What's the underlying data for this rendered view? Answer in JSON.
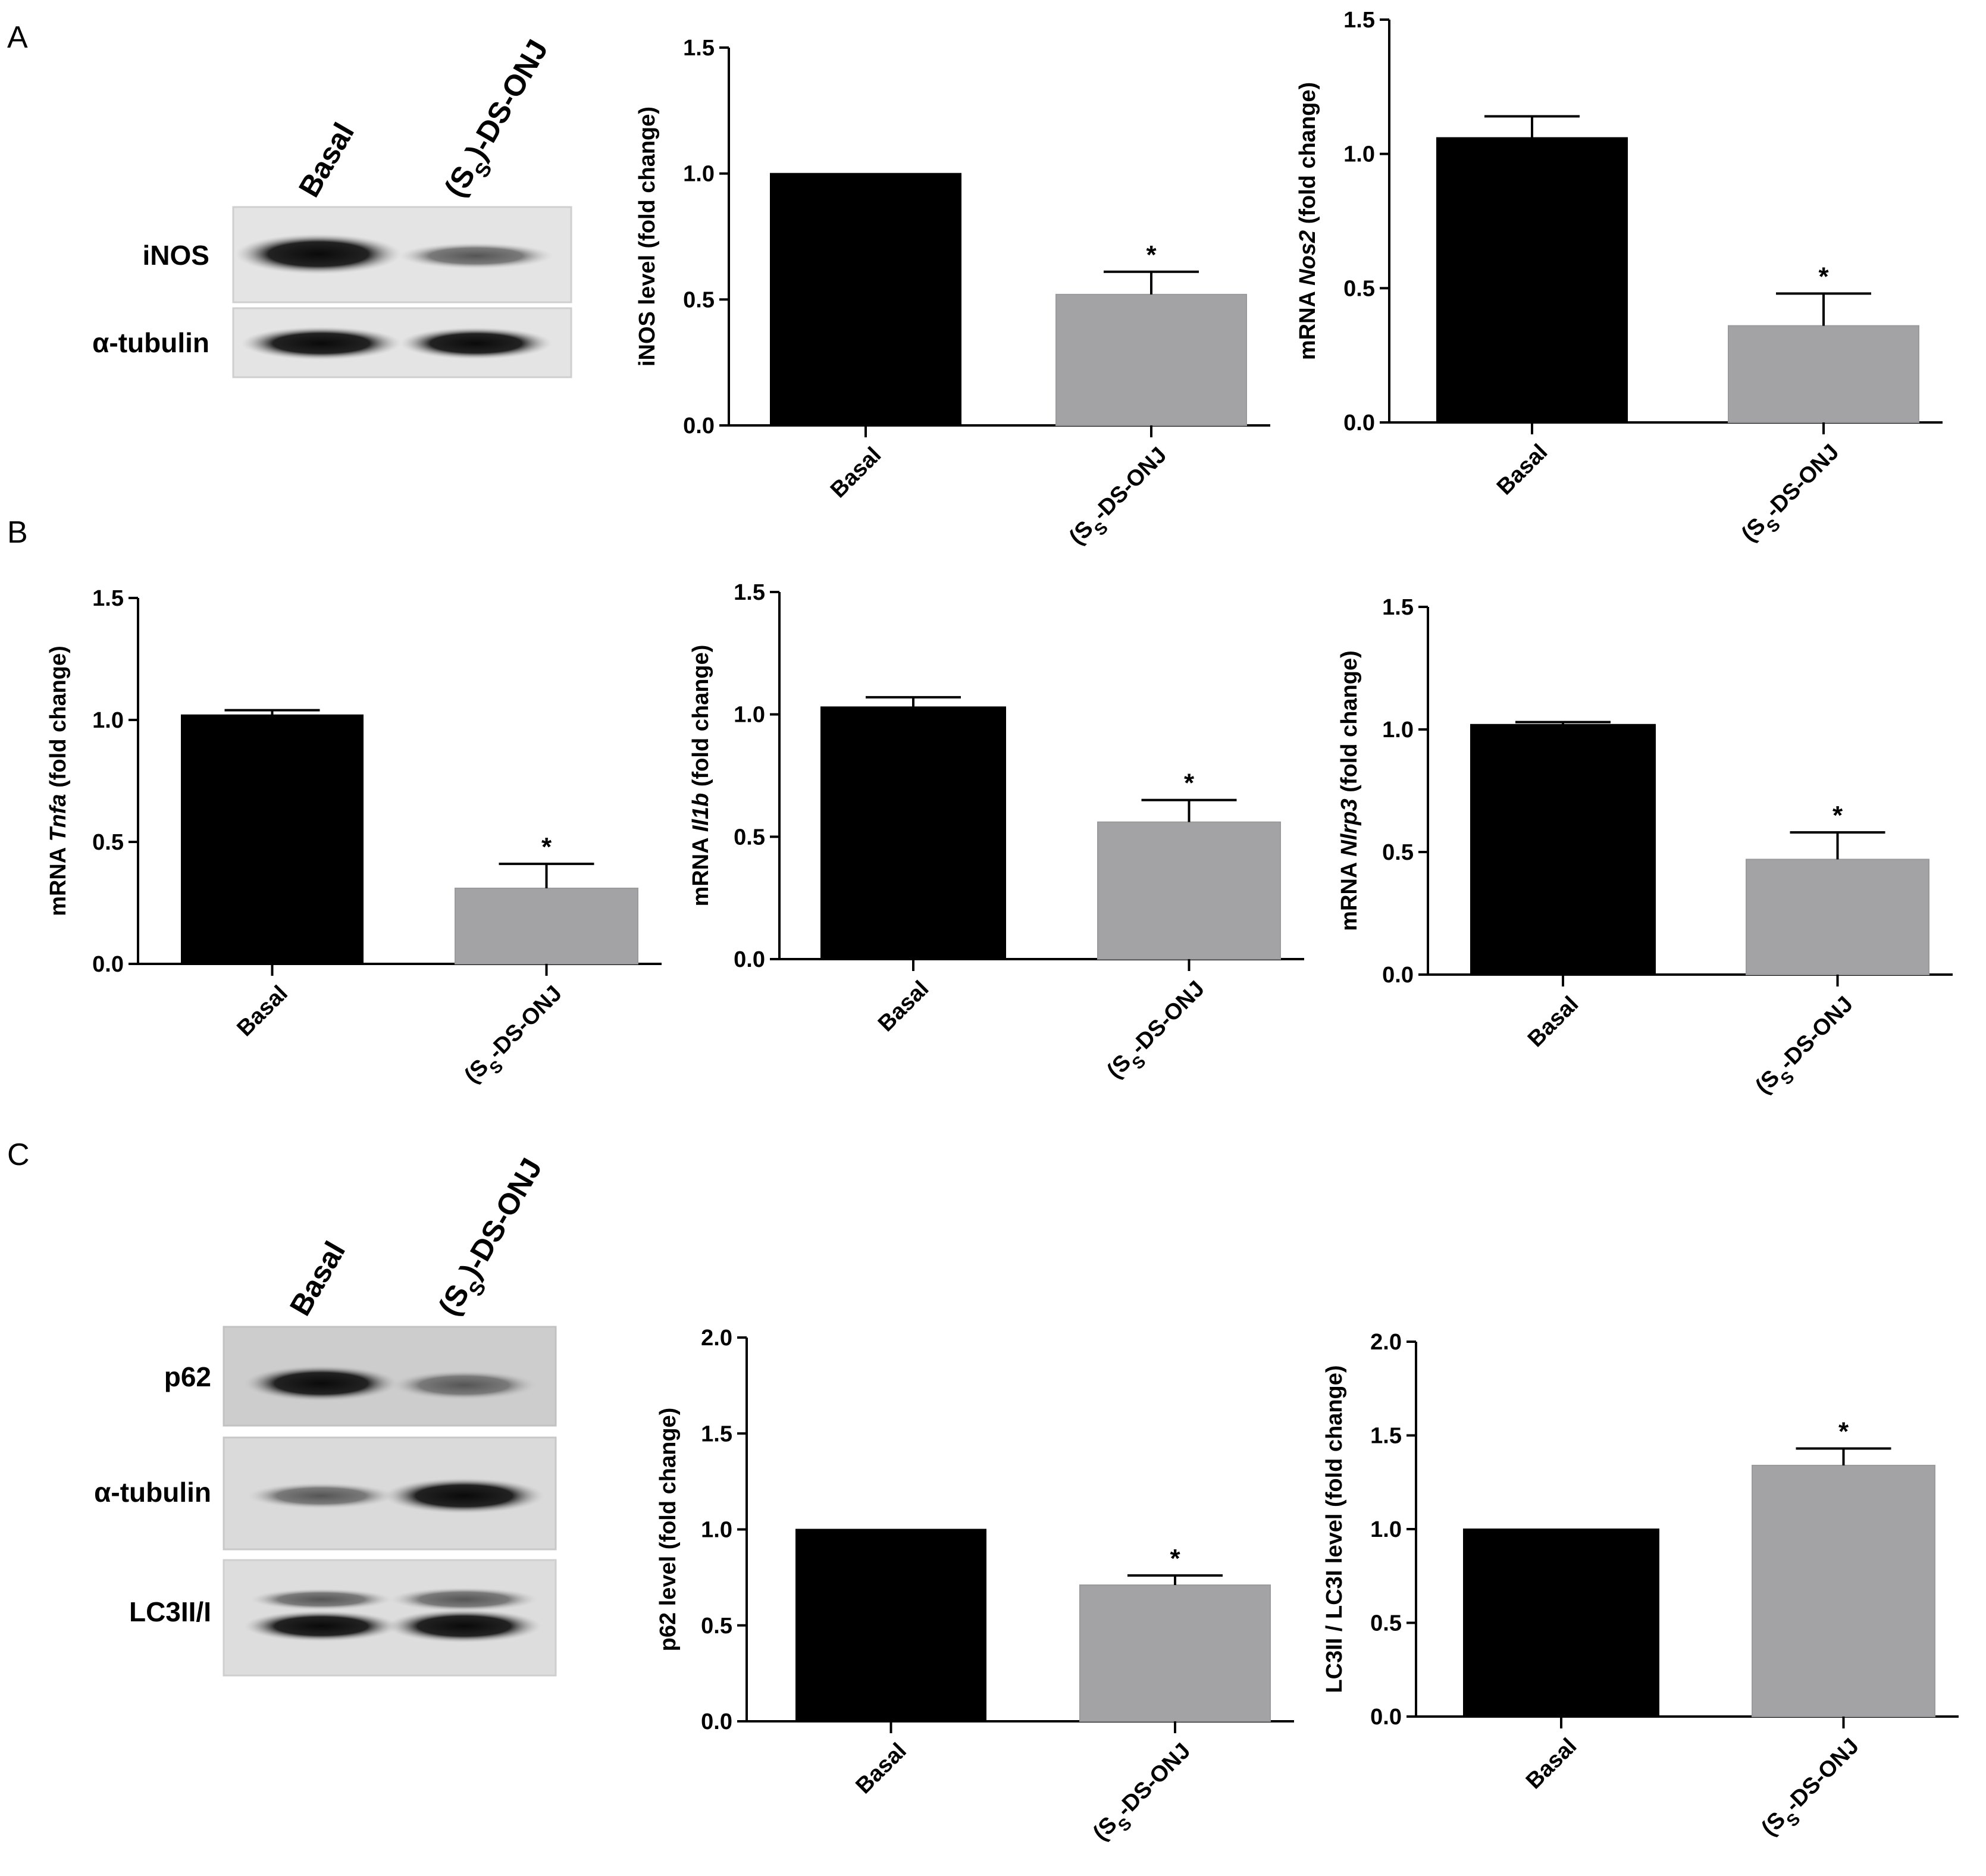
{
  "panels": {
    "a": "A",
    "b": "B",
    "c": "C"
  },
  "colors": {
    "basal_bar": "#000000",
    "treated_bar": "#a3a3a6",
    "axis": "#000000",
    "blot_bg": "#e2e2e2",
    "band": "#1a1a1a"
  },
  "blots": {
    "a": {
      "lanes": [
        "Basal",
        "(S",
        "S",
        ")-DS-ONJ"
      ],
      "rows": [
        "iNOS",
        "α-tubulin"
      ]
    },
    "c": {
      "lanes": [
        "Basal",
        "(S",
        "S",
        ")-DS-ONJ"
      ],
      "rows": [
        "p62",
        "α-tubulin",
        "LC3II/I"
      ]
    }
  },
  "chart_data": [
    {
      "id": "a1",
      "type": "bar",
      "categories": [
        "Basal",
        "(SS)-DS-ONJ"
      ],
      "values": [
        1.0,
        0.52
      ],
      "errors": [
        0,
        0.09
      ],
      "significance": [
        "",
        "*"
      ],
      "ylabel": "iNOS level (fold change)",
      "ylim": [
        0,
        1.5
      ],
      "yticks": [
        "0.0",
        "0.5",
        "1.0",
        "1.5"
      ]
    },
    {
      "id": "a2",
      "type": "bar",
      "categories": [
        "Basal",
        "(SS)-DS-ONJ"
      ],
      "values": [
        1.06,
        0.36
      ],
      "errors": [
        0.08,
        0.12
      ],
      "significance": [
        "",
        "*"
      ],
      "ylabel": "mRNA Nos2 (fold change)",
      "ylim": [
        0,
        1.5
      ],
      "yticks": [
        "0.0",
        "0.5",
        "1.0",
        "1.5"
      ]
    },
    {
      "id": "b1",
      "type": "bar",
      "categories": [
        "Basal",
        "(SS)-DS-ONJ"
      ],
      "values": [
        1.02,
        0.31
      ],
      "errors": [
        0.02,
        0.1
      ],
      "significance": [
        "",
        "*"
      ],
      "ylabel": "mRNA Tnfa (fold change)",
      "ylim": [
        0,
        1.5
      ],
      "yticks": [
        "0.0",
        "0.5",
        "1.0",
        "1.5"
      ]
    },
    {
      "id": "b2",
      "type": "bar",
      "categories": [
        "Basal",
        "(SS)-DS-ONJ"
      ],
      "values": [
        1.03,
        0.56
      ],
      "errors": [
        0.04,
        0.09
      ],
      "significance": [
        "",
        "*"
      ],
      "ylabel": "mRNA Il1b (fold change)",
      "ylim": [
        0,
        1.5
      ],
      "yticks": [
        "0.0",
        "0.5",
        "1.0",
        "1.5"
      ]
    },
    {
      "id": "b3",
      "type": "bar",
      "categories": [
        "Basal",
        "(SS)-DS-ONJ"
      ],
      "values": [
        1.02,
        0.47
      ],
      "errors": [
        0.01,
        0.11
      ],
      "significance": [
        "",
        "*"
      ],
      "ylabel": "mRNA Nlrp3 (fold change)",
      "ylim": [
        0,
        1.5
      ],
      "yticks": [
        "0.0",
        "0.5",
        "1.0",
        "1.5"
      ]
    },
    {
      "id": "c1",
      "type": "bar",
      "categories": [
        "Basal",
        "(SS)-DS-ONJ"
      ],
      "values": [
        1.0,
        0.71
      ],
      "errors": [
        0,
        0.05
      ],
      "significance": [
        "",
        "*"
      ],
      "ylabel": "p62 level (fold change)",
      "ylim": [
        0,
        2.0
      ],
      "yticks": [
        "0.0",
        "0.5",
        "1.0",
        "1.5",
        "2.0"
      ]
    },
    {
      "id": "c2",
      "type": "bar",
      "categories": [
        "Basal",
        "(SS)-DS-ONJ"
      ],
      "values": [
        1.0,
        1.34
      ],
      "errors": [
        0,
        0.09
      ],
      "significance": [
        "",
        "*"
      ],
      "ylabel": "LC3II / LC3I level (fold change)",
      "ylim": [
        0,
        2.0
      ],
      "yticks": [
        "0.0",
        "0.5",
        "1.0",
        "1.5",
        "2.0"
      ]
    }
  ]
}
